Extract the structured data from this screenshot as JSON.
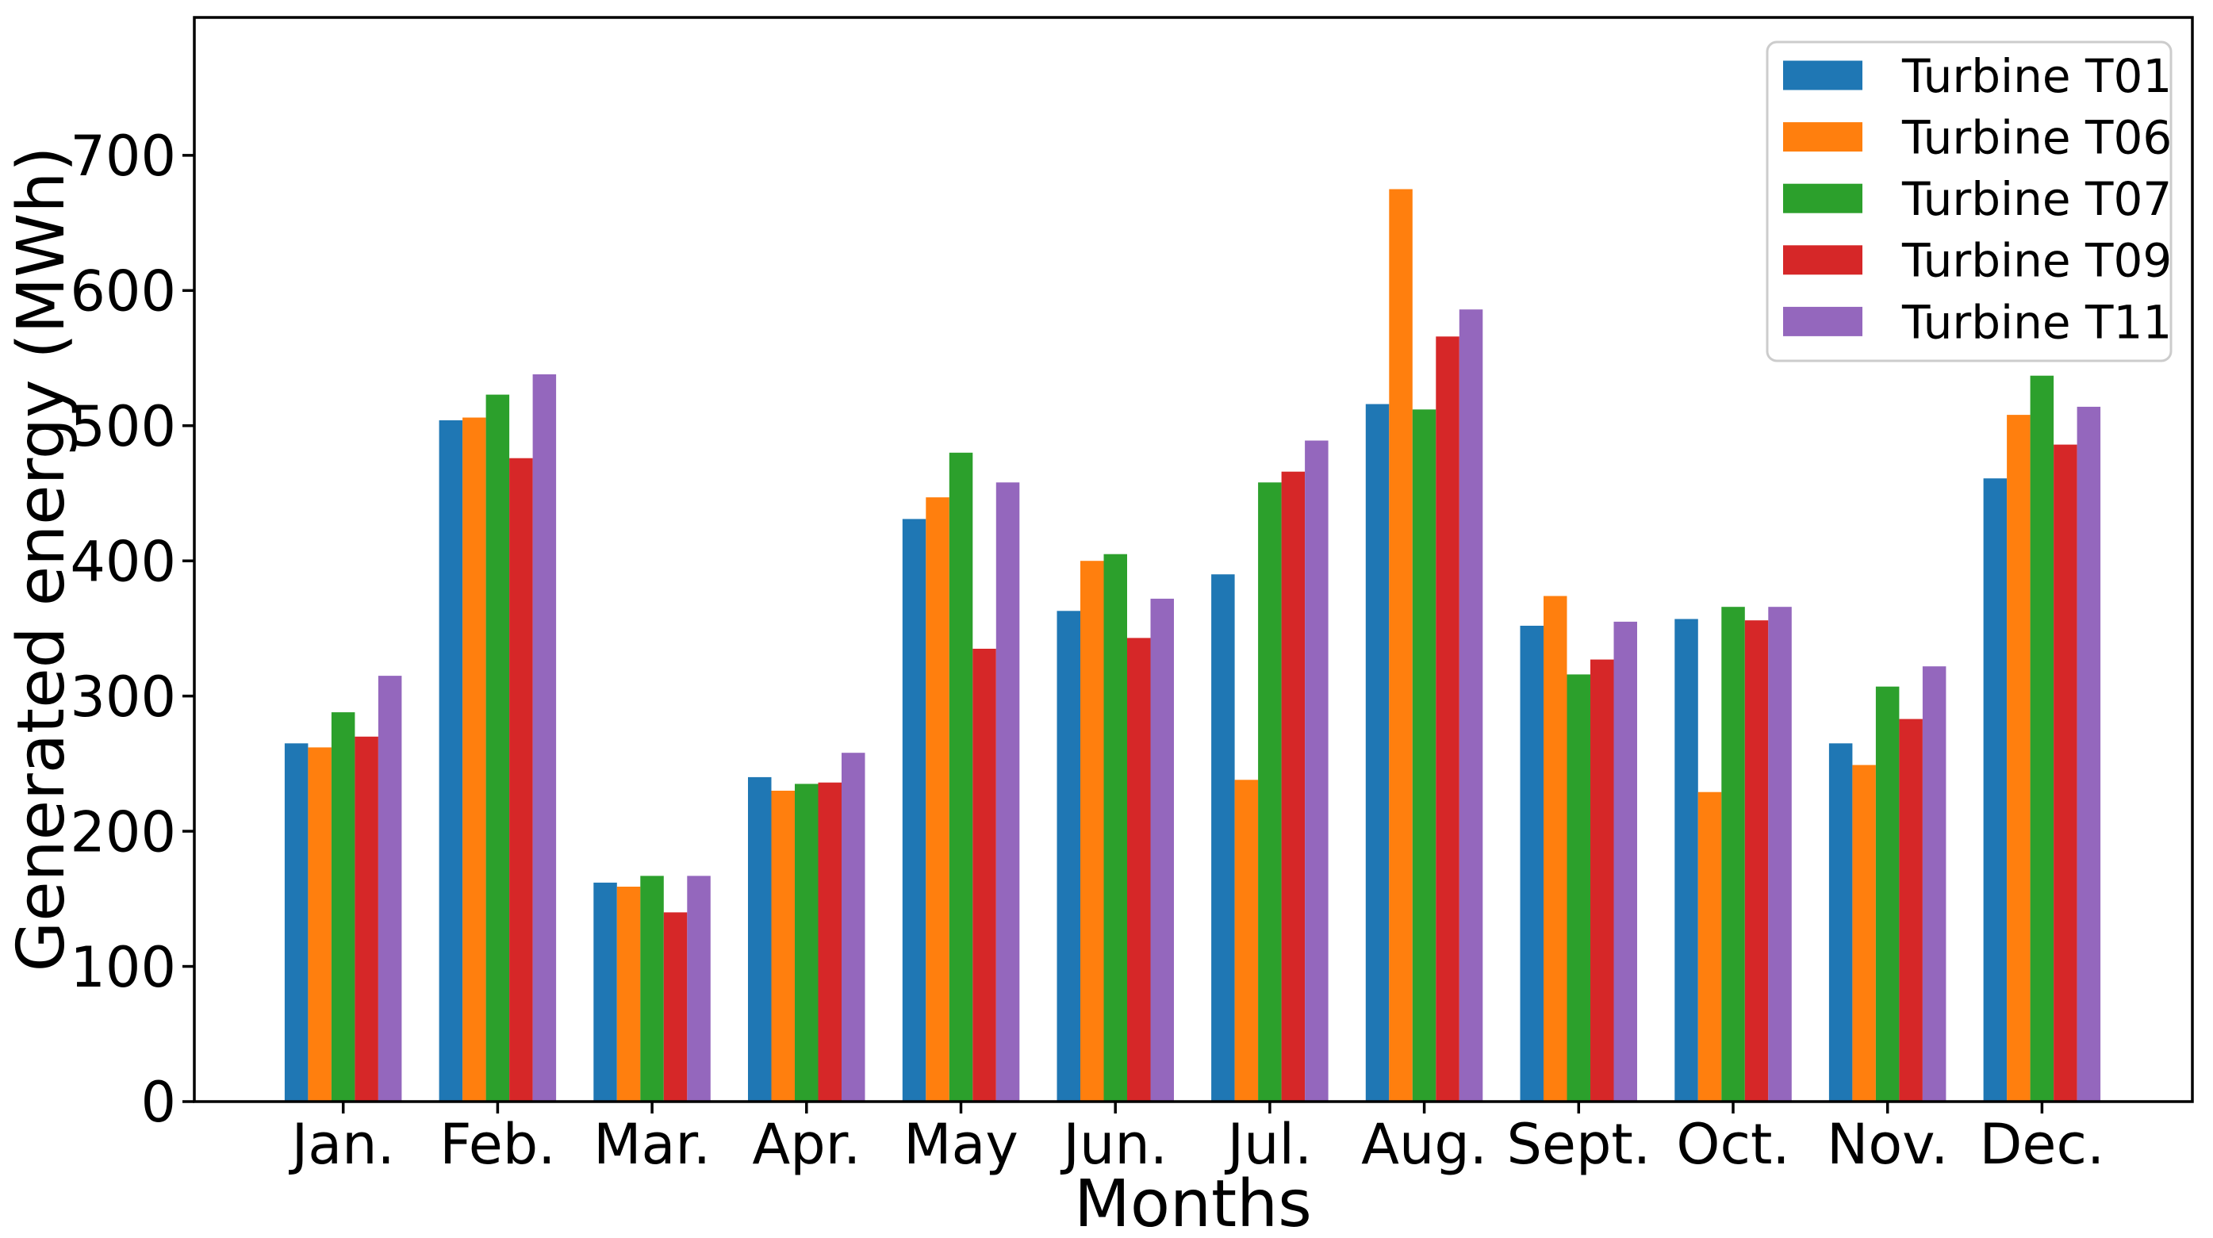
{
  "figure": {
    "background_color": "#ffffff",
    "spine_color": "#000000",
    "legend_border_color": "#cccccc"
  },
  "chart_data": {
    "type": "bar",
    "title": "",
    "xlabel": "Months",
    "ylabel": "Generated energy (MWh)",
    "categories": [
      "Jan.",
      "Feb.",
      "Mar.",
      "Apr.",
      "May",
      "Jun.",
      "Jul.",
      "Aug.",
      "Sept.",
      "Oct.",
      "Nov.",
      "Dec."
    ],
    "series": [
      {
        "name": "Turbine T01",
        "color": "#1f77b4",
        "values": [
          265,
          504,
          162,
          240,
          431,
          363,
          390,
          516,
          352,
          357,
          265,
          461
        ]
      },
      {
        "name": "Turbine T06",
        "color": "#ff7f0e",
        "values": [
          262,
          506,
          159,
          230,
          447,
          400,
          238,
          675,
          374,
          229,
          249,
          508
        ]
      },
      {
        "name": "Turbine T07",
        "color": "#2ca02c",
        "values": [
          288,
          523,
          167,
          235,
          480,
          405,
          458,
          512,
          316,
          366,
          307,
          537
        ]
      },
      {
        "name": "Turbine T09",
        "color": "#d62728",
        "values": [
          270,
          476,
          140,
          236,
          335,
          343,
          466,
          566,
          327,
          356,
          283,
          486
        ]
      },
      {
        "name": "Turbine T11",
        "color": "#9467bd",
        "values": [
          315,
          538,
          167,
          258,
          458,
          372,
          489,
          586,
          355,
          366,
          322,
          514
        ]
      }
    ],
    "ylim": [
      0,
      802
    ],
    "ytick_values": [
      0,
      100,
      200,
      300,
      400,
      500,
      600,
      700
    ],
    "grid": false,
    "legend_position": "upper right",
    "legend_entries": [
      "Turbine T01",
      "Turbine T06",
      "Turbine T07",
      "Turbine T09",
      "Turbine T11"
    ]
  }
}
